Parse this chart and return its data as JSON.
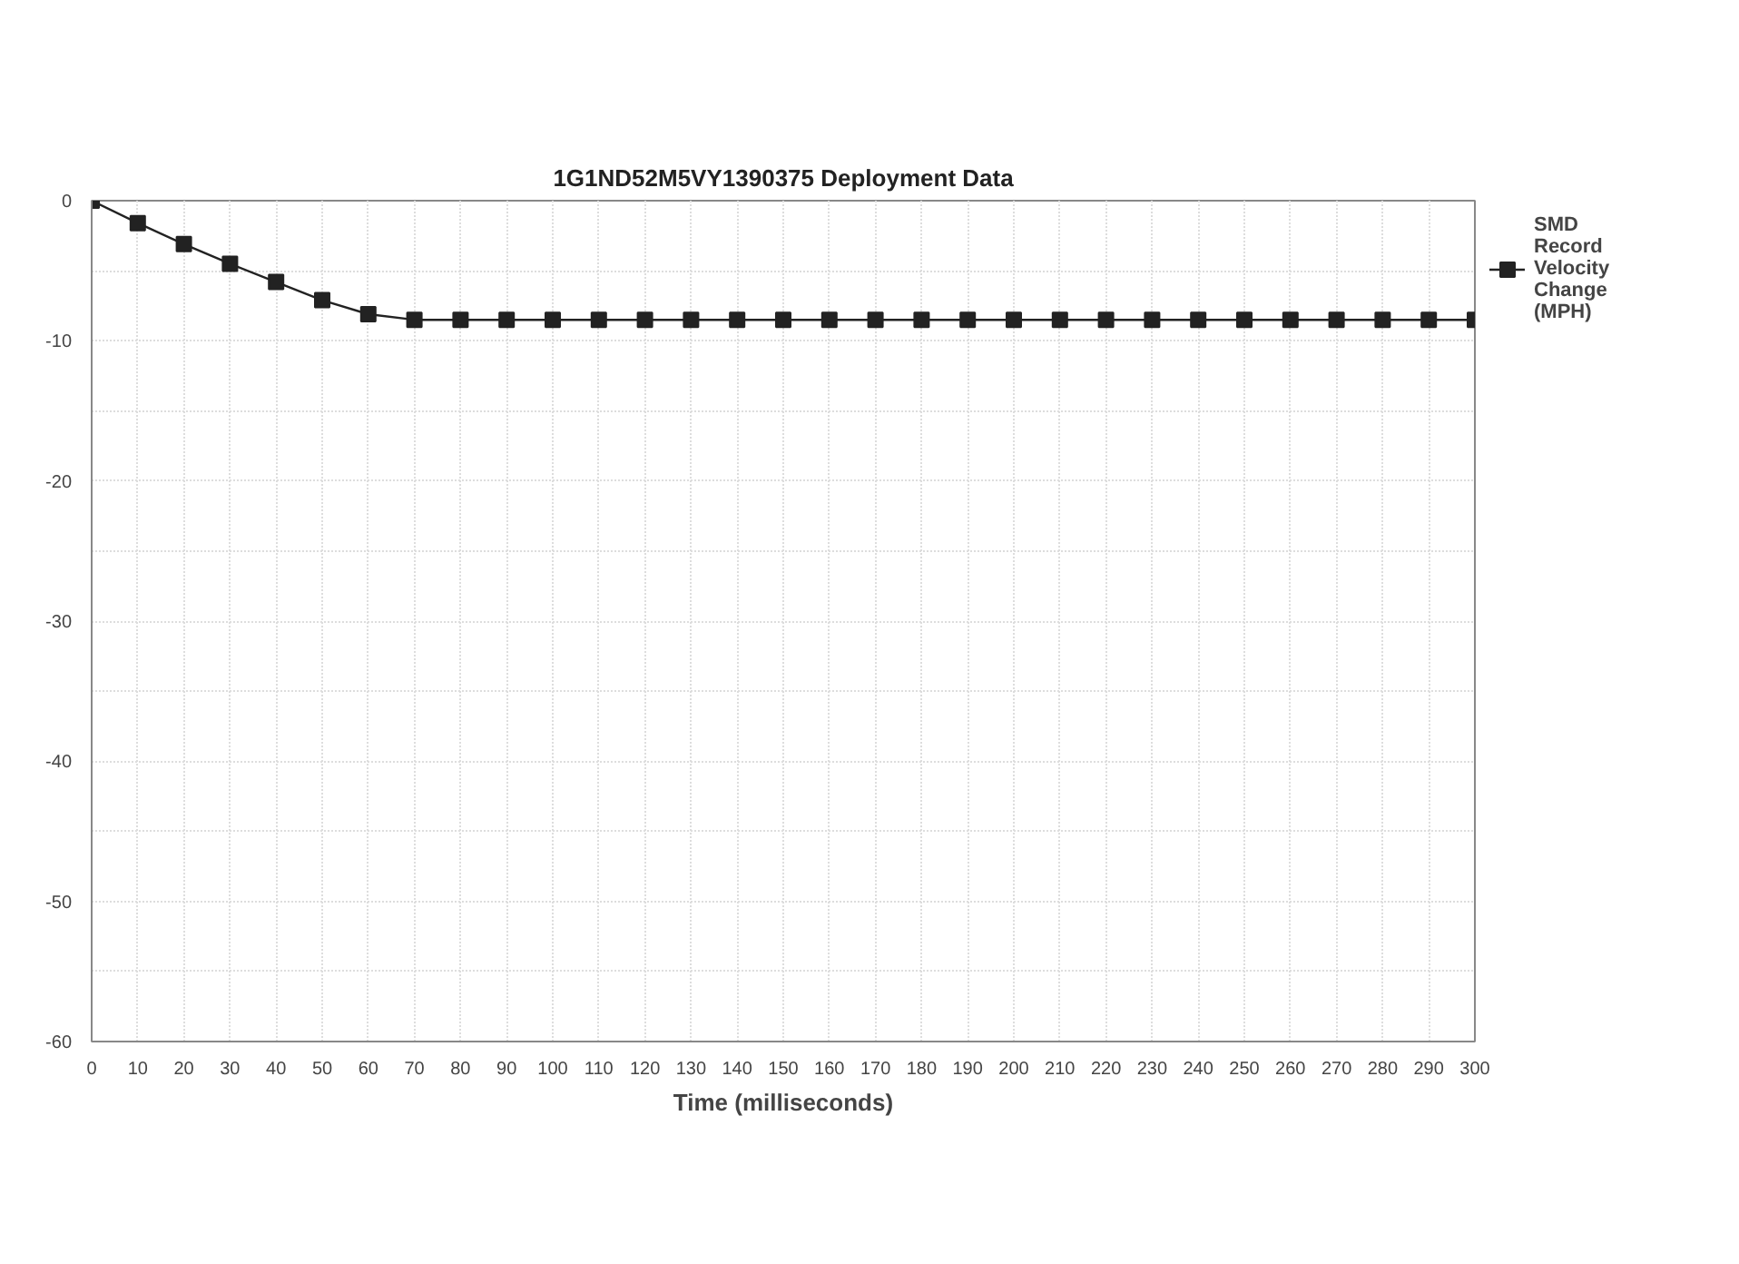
{
  "chart_data": {
    "type": "line",
    "title": "1G1ND52M5VY1390375 Deployment Data",
    "xlabel": "Time (milliseconds)",
    "x": [
      0,
      10,
      20,
      30,
      40,
      50,
      60,
      70,
      80,
      90,
      100,
      110,
      120,
      130,
      140,
      150,
      160,
      170,
      180,
      190,
      200,
      210,
      220,
      230,
      240,
      250,
      260,
      270,
      280,
      290,
      300
    ],
    "series": [
      {
        "name": "SMD Record Velocity Change (MPH)",
        "color": "#222222",
        "values": [
          0,
          -1.6,
          -3.1,
          -4.5,
          -5.8,
          -7.1,
          -8.1,
          -8.5,
          -8.5,
          -8.5,
          -8.5,
          -8.5,
          -8.5,
          -8.5,
          -8.5,
          -8.5,
          -8.5,
          -8.5,
          -8.5,
          -8.5,
          -8.5,
          -8.5,
          -8.5,
          -8.5,
          -8.5,
          -8.5,
          -8.5,
          -8.5,
          -8.5,
          -8.5,
          -8.5
        ]
      }
    ],
    "xlim": [
      0,
      300
    ],
    "xticks": [
      0,
      10,
      20,
      30,
      40,
      50,
      60,
      70,
      80,
      90,
      100,
      110,
      120,
      130,
      140,
      150,
      160,
      170,
      180,
      190,
      200,
      210,
      220,
      230,
      240,
      250,
      260,
      270,
      280,
      290,
      300
    ],
    "ylim": [
      -60,
      0
    ],
    "yticks": [
      -60,
      {
        "value": -55,
        "label": null
      },
      -50,
      {
        "value": -45,
        "label": null
      },
      -40,
      {
        "value": -35,
        "label": null
      },
      -30,
      {
        "value": -25,
        "label": null
      },
      -20,
      {
        "value": -15,
        "label": null
      },
      -10,
      {
        "value": -5,
        "label": null
      },
      0
    ],
    "grid": true,
    "legend": "top right",
    "marker": "square",
    "line_style": "solid"
  }
}
